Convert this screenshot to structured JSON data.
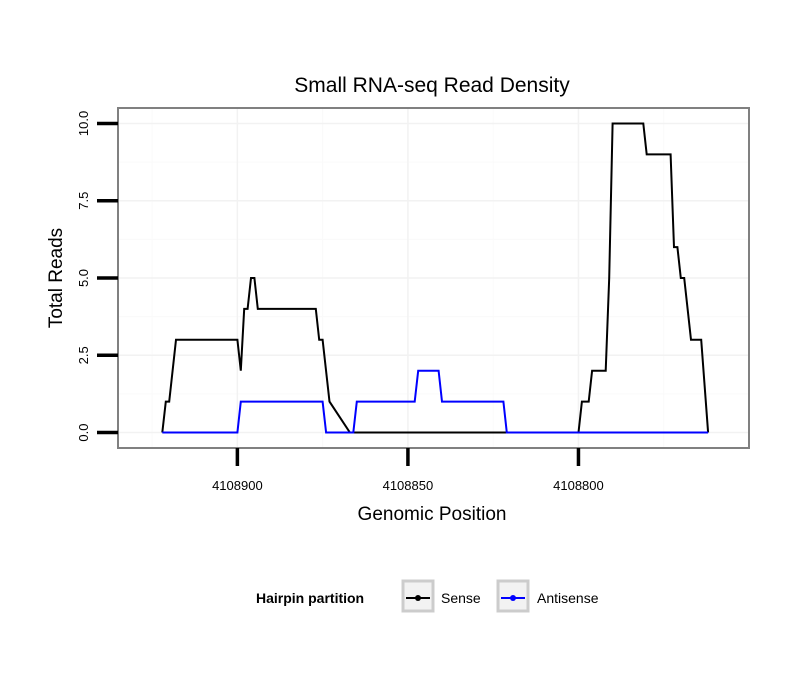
{
  "chart_data": {
    "type": "line",
    "title": "Small RNA-seq Read Density",
    "xlabel": "Genomic Position",
    "ylabel": "Total Reads",
    "x_reversed": true,
    "xlim": [
      4108935,
      4108750
    ],
    "ylim": [
      -0.5,
      10.5
    ],
    "x_ticks": [
      4108900,
      4108850,
      4108800
    ],
    "x_tick_labels": [
      "4108900",
      "4108850",
      "4108800"
    ],
    "y_ticks": [
      0,
      2.5,
      5,
      7.5,
      10
    ],
    "y_tick_labels": [
      "0.0",
      "2.5",
      "5.0",
      "7.5",
      "10.0"
    ],
    "grid": true,
    "legend": {
      "title": "Hairpin partition",
      "position": "bottom"
    },
    "series": [
      {
        "name": "Sense",
        "color": "#000000",
        "x": [
          4108922,
          4108921,
          4108920,
          4108918,
          4108917,
          4108900,
          4108899,
          4108898,
          4108897,
          4108896,
          4108895,
          4108894,
          4108893,
          4108892,
          4108877,
          4108876,
          4108875,
          4108873,
          4108867,
          4108800,
          4108799,
          4108797,
          4108796,
          4108792,
          4108791,
          4108790,
          4108789,
          4108788,
          4108786,
          4108781,
          4108780,
          4108773,
          4108772,
          4108771,
          4108770,
          4108769,
          4108768,
          4108767,
          4108765,
          4108764,
          4108762
        ],
        "y": [
          0,
          1,
          1,
          3,
          3,
          3,
          2,
          4,
          4,
          5,
          5,
          4,
          4,
          4,
          4,
          3,
          3,
          1,
          0,
          0,
          1,
          1,
          2,
          2,
          5,
          10,
          10,
          10,
          10,
          10,
          9,
          9,
          6,
          6,
          5,
          5,
          4,
          3,
          3,
          3,
          0
        ]
      },
      {
        "name": "Antisense",
        "color": "#0000ff",
        "x": [
          4108922,
          4108900,
          4108899,
          4108876,
          4108875,
          4108874,
          4108866,
          4108865,
          4108848,
          4108847,
          4108846,
          4108841,
          4108840,
          4108822,
          4108821,
          4108762
        ],
        "y": [
          0,
          0,
          1,
          1,
          1,
          0,
          0,
          1,
          1,
          2,
          2,
          2,
          1,
          1,
          0,
          0
        ]
      }
    ]
  }
}
